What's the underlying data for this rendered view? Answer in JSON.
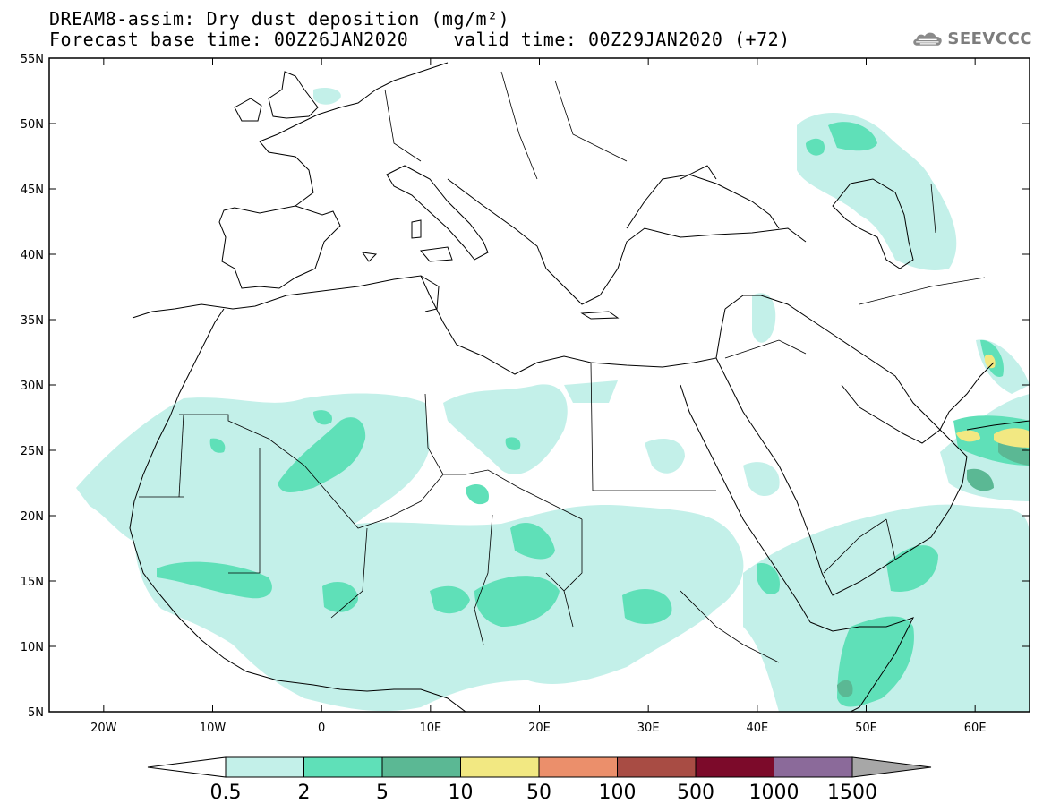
{
  "header": {
    "title_line1": "DREAM8-assim: Dry dust deposition (mg/m²)",
    "title_line2": "Forecast base time: 00Z26JAN2020    valid time: 00Z29JAN2020 (+72)",
    "logo_text": "SEEVCCC"
  },
  "map": {
    "lat_labels": [
      "55N",
      "50N",
      "45N",
      "40N",
      "35N",
      "30N",
      "25N",
      "20N",
      "15N",
      "10N",
      "5N"
    ],
    "lon_labels": [
      "20W",
      "10W",
      "0",
      "10E",
      "20E",
      "30E",
      "40E",
      "50E",
      "60E"
    ]
  },
  "colorbar": {
    "tick_labels": [
      "0.5",
      "2",
      "5",
      "10",
      "50",
      "100",
      "500",
      "1000",
      "1500"
    ],
    "colors": [
      "#c3f0e9",
      "#5fe0b8",
      "#5bb894",
      "#f2e882",
      "#eb8f6b",
      "#a84c44",
      "#7c0a2a",
      "#8b6a9a"
    ],
    "under_color": "#ffffff",
    "over_color": "#a7a7a7"
  }
}
